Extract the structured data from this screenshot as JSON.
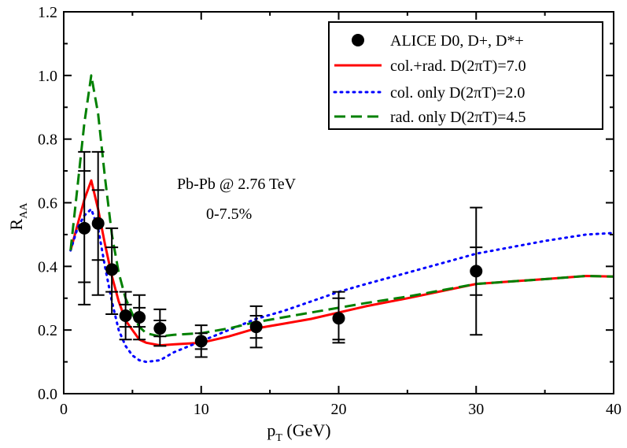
{
  "chart_data": {
    "type": "scatter",
    "xlabel_main": "p",
    "xlabel_sub": "T",
    "xlabel_unit": " (GeV)",
    "ylabel_main": "R",
    "ylabel_sub": "AA",
    "xlim": [
      0,
      40
    ],
    "ylim": [
      0,
      1.2
    ],
    "xticks": [
      0,
      10,
      20,
      30,
      40
    ],
    "xtick_labels": [
      "0",
      "10",
      "20",
      "30",
      "40"
    ],
    "yticks": [
      0,
      0.2,
      0.4,
      0.6,
      0.8,
      1.0,
      1.2
    ],
    "ytick_labels": [
      "0.0",
      "0.2",
      "0.4",
      "0.6",
      "0.8",
      "1.0",
      "1.2"
    ],
    "legend_position": "top-right",
    "annotations": [
      "Pb-Pb @ 2.76 TeV",
      "0-7.5%"
    ],
    "data_series": {
      "name": "ALICE D0, D+, D*+",
      "color": "#000000",
      "points": [
        {
          "x": 1.5,
          "y": 0.52,
          "stat_lo": 0.35,
          "stat_hi": 0.7,
          "sys_lo": 0.28,
          "sys_hi": 0.76
        },
        {
          "x": 2.5,
          "y": 0.535,
          "stat_lo": 0.42,
          "stat_hi": 0.64,
          "sys_lo": 0.31,
          "sys_hi": 0.76
        },
        {
          "x": 3.5,
          "y": 0.39,
          "stat_lo": 0.32,
          "stat_hi": 0.46,
          "sys_lo": 0.25,
          "sys_hi": 0.52
        },
        {
          "x": 4.5,
          "y": 0.245,
          "stat_lo": 0.21,
          "stat_hi": 0.28,
          "sys_lo": 0.17,
          "sys_hi": 0.32
        },
        {
          "x": 5.5,
          "y": 0.24,
          "stat_lo": 0.21,
          "stat_hi": 0.27,
          "sys_lo": 0.17,
          "sys_hi": 0.31
        },
        {
          "x": 7.0,
          "y": 0.205,
          "stat_lo": 0.18,
          "stat_hi": 0.23,
          "sys_lo": 0.15,
          "sys_hi": 0.265
        },
        {
          "x": 10.0,
          "y": 0.165,
          "stat_lo": 0.14,
          "stat_hi": 0.19,
          "sys_lo": 0.115,
          "sys_hi": 0.215
        },
        {
          "x": 14.0,
          "y": 0.21,
          "stat_lo": 0.175,
          "stat_hi": 0.245,
          "sys_lo": 0.145,
          "sys_hi": 0.275
        },
        {
          "x": 20.0,
          "y": 0.237,
          "stat_lo": 0.17,
          "stat_hi": 0.3,
          "sys_lo": 0.16,
          "sys_hi": 0.32
        },
        {
          "x": 30.0,
          "y": 0.385,
          "stat_lo": 0.31,
          "stat_hi": 0.46,
          "sys_lo": 0.185,
          "sys_hi": 0.585
        }
      ]
    },
    "series": [
      {
        "name": "col.+rad. D(2πT)=7.0",
        "color": "#ff0000",
        "style": "solid",
        "x": [
          0.5,
          1.0,
          1.5,
          2.0,
          2.5,
          3.0,
          3.5,
          4.0,
          4.5,
          5.0,
          5.5,
          6.0,
          7.0,
          8.0,
          10.0,
          12.0,
          14.0,
          16.0,
          18.0,
          20.0,
          22.0,
          25.0,
          30.0,
          35.0,
          38.0,
          40.0
        ],
        "y": [
          0.45,
          0.53,
          0.61,
          0.67,
          0.58,
          0.47,
          0.37,
          0.29,
          0.23,
          0.2,
          0.17,
          0.16,
          0.152,
          0.155,
          0.16,
          0.18,
          0.205,
          0.22,
          0.235,
          0.255,
          0.275,
          0.3,
          0.345,
          0.36,
          0.37,
          0.368
        ]
      },
      {
        "name": "col. only D(2πT)=2.0",
        "color": "#0000ff",
        "style": "dotted",
        "x": [
          0.5,
          1.0,
          1.5,
          2.0,
          2.5,
          3.0,
          3.5,
          4.0,
          4.5,
          5.0,
          5.5,
          6.0,
          7.0,
          8.0,
          10.0,
          12.0,
          14.0,
          16.0,
          18.0,
          20.0,
          22.0,
          25.0,
          30.0,
          35.0,
          38.0,
          40.0
        ],
        "y": [
          0.45,
          0.52,
          0.56,
          0.58,
          0.52,
          0.4,
          0.29,
          0.2,
          0.15,
          0.12,
          0.105,
          0.1,
          0.105,
          0.13,
          0.165,
          0.2,
          0.235,
          0.26,
          0.29,
          0.32,
          0.345,
          0.38,
          0.44,
          0.48,
          0.5,
          0.505
        ]
      },
      {
        "name": "rad. only D(2πT)=4.5",
        "color": "#008000",
        "style": "dashed",
        "x": [
          0.5,
          1.0,
          1.5,
          2.0,
          2.5,
          3.0,
          3.5,
          4.0,
          4.5,
          5.0,
          5.5,
          6.0,
          7.0,
          8.0,
          10.0,
          12.0,
          14.0,
          16.0,
          18.0,
          20.0,
          22.0,
          25.0,
          30.0,
          35.0,
          38.0,
          40.0
        ],
        "y": [
          0.45,
          0.65,
          0.85,
          1.0,
          0.88,
          0.68,
          0.5,
          0.38,
          0.3,
          0.25,
          0.21,
          0.19,
          0.18,
          0.185,
          0.19,
          0.205,
          0.225,
          0.24,
          0.255,
          0.27,
          0.285,
          0.305,
          0.345,
          0.36,
          0.37,
          0.368
        ]
      }
    ]
  }
}
